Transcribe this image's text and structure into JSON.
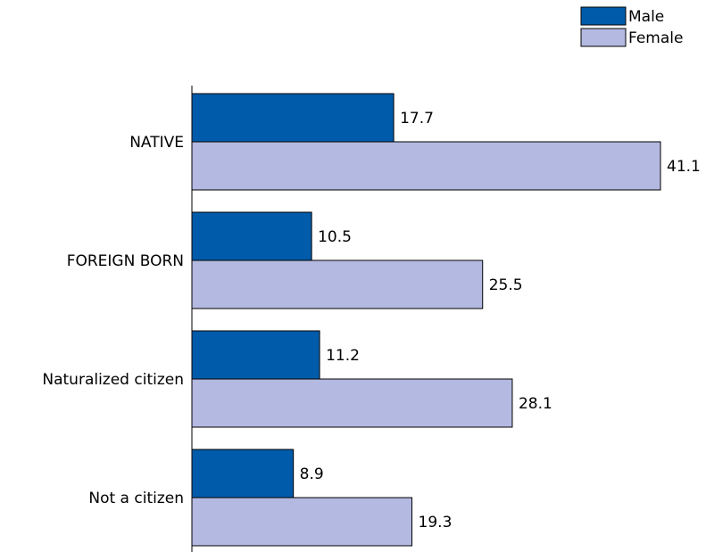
{
  "chart_data": {
    "type": "bar",
    "orientation": "horizontal",
    "categories": [
      "NATIVE",
      "FOREIGN BORN",
      "Naturalized citizen",
      "Not a citizen"
    ],
    "series": [
      {
        "name": "Male",
        "color": "#005BAA",
        "values": [
          17.7,
          10.5,
          11.2,
          8.9
        ]
      },
      {
        "name": "Female",
        "color": "#B3B9E0",
        "values": [
          41.1,
          25.5,
          28.1,
          19.3
        ]
      }
    ],
    "value_labels": {
      "Male": [
        "17.7",
        "10.5",
        "11.2",
        "8.9"
      ],
      "Female": [
        "41.1",
        "25.5",
        "28.1",
        "19.3"
      ]
    },
    "title": "",
    "xlabel": "",
    "ylabel": "",
    "xlim": [
      0,
      41.1
    ],
    "grid": false,
    "legend": "top-right",
    "legend_entries": [
      "Male",
      "Female"
    ]
  }
}
